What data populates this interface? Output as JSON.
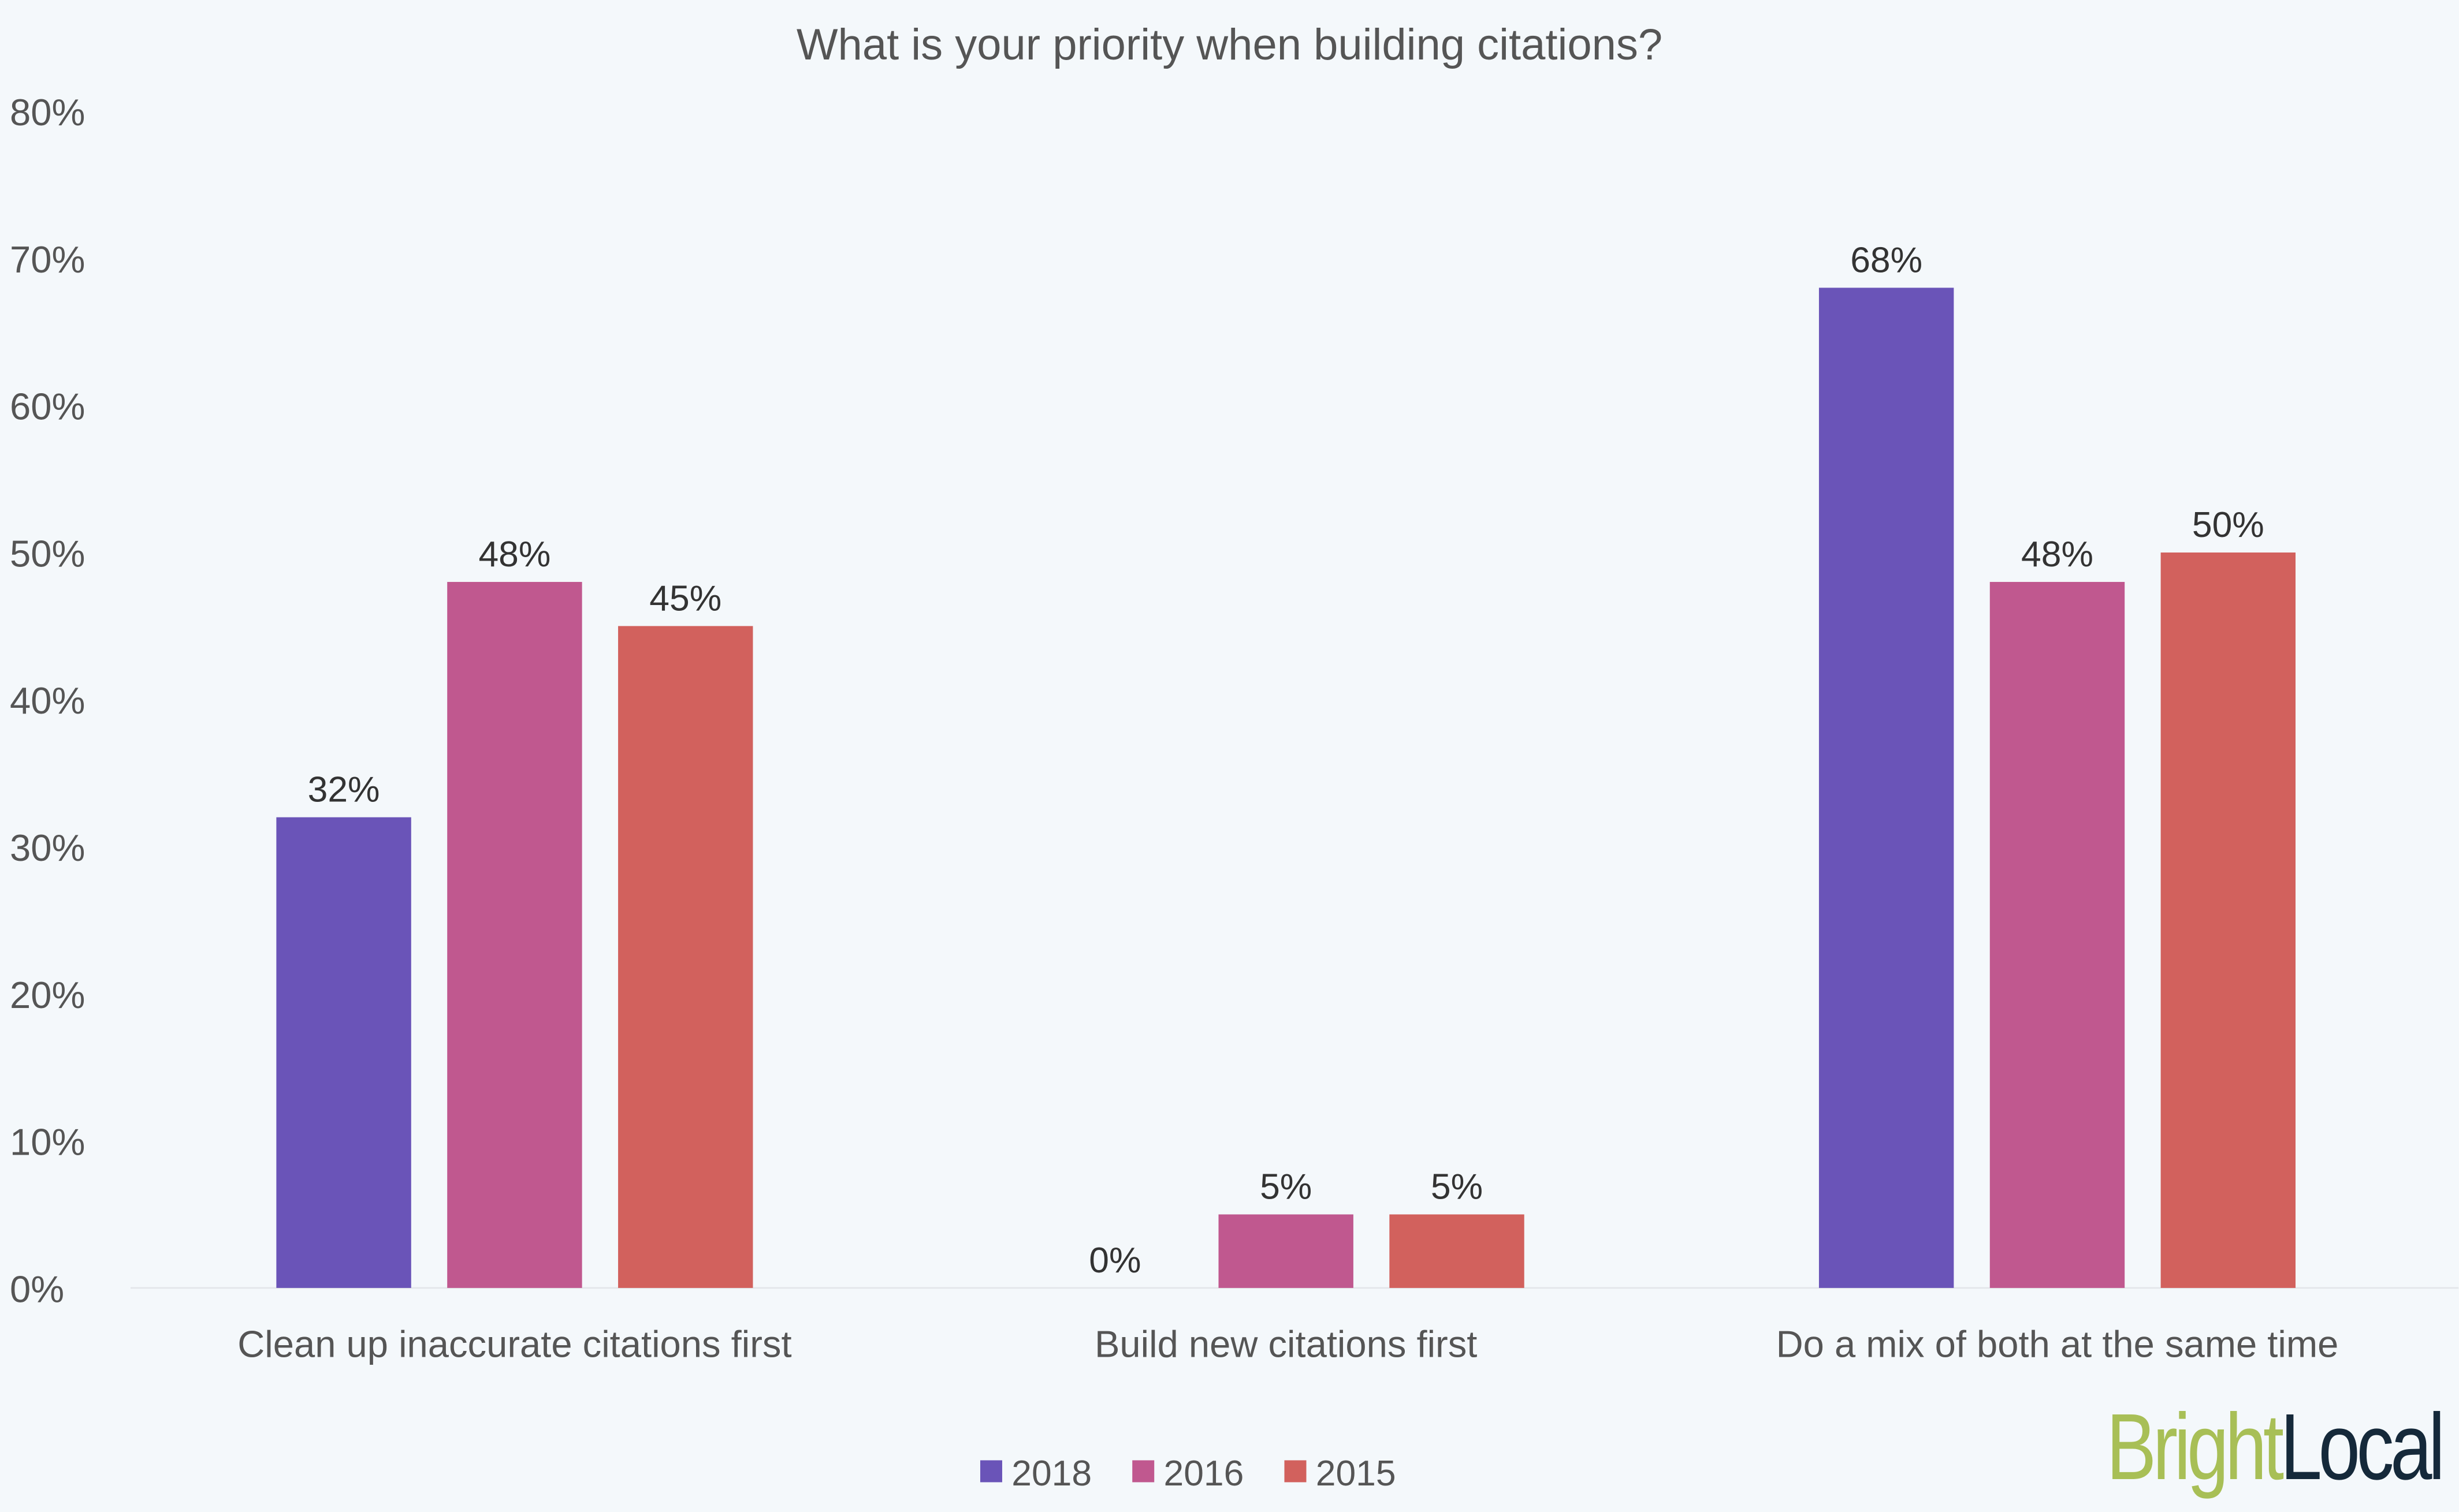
{
  "chart_data": {
    "type": "bar",
    "title": "What is your priority when building citations?",
    "categories": [
      "Clean up inaccurate citations first",
      "Build new citations first",
      "Do a mix of both at the same time"
    ],
    "series": [
      {
        "name": "2018",
        "color": "#6a54b8",
        "values": [
          32,
          0,
          68
        ],
        "labels": [
          "32%",
          "0%",
          "68%"
        ]
      },
      {
        "name": "2016",
        "color": "#c0588f",
        "values": [
          48,
          5,
          48
        ],
        "labels": [
          "48%",
          "5%",
          "48%"
        ]
      },
      {
        "name": "2015",
        "color": "#d2615d",
        "values": [
          45,
          5,
          50
        ],
        "labels": [
          "45%",
          "5%",
          "50%"
        ]
      }
    ],
    "ylim": [
      0,
      80
    ],
    "yticks": [
      "0%",
      "10%",
      "20%",
      "30%",
      "40%",
      "50%",
      "60%",
      "70%",
      "80%"
    ],
    "xlabel": "",
    "ylabel": "",
    "grid": false,
    "legend_position": "bottom"
  },
  "logo": {
    "part1": "Bright",
    "part2": "Local",
    "color1": "#a8bf56",
    "color2": "#15293a"
  }
}
